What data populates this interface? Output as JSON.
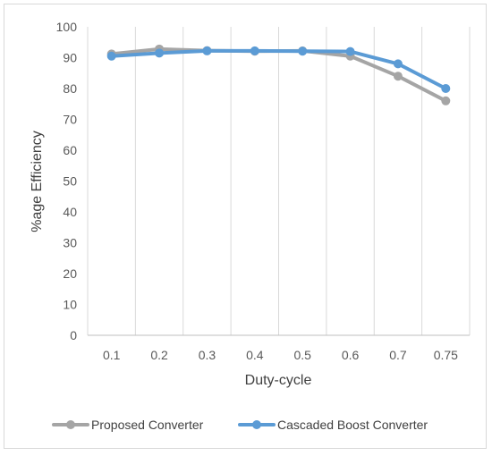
{
  "chart_data": {
    "type": "line",
    "categories": [
      "0.1",
      "0.2",
      "0.3",
      "0.4",
      "0.5",
      "0.6",
      "0.7",
      "0.75"
    ],
    "series": [
      {
        "name": "Proposed Converter",
        "color": "#a5a5a5",
        "values": [
          91.2,
          92.8,
          92.3,
          92.1,
          92.2,
          90.5,
          84.0,
          76.0
        ]
      },
      {
        "name": "Cascaded Boost Converter",
        "color": "#5b9bd5",
        "values": [
          90.5,
          91.5,
          92.2,
          92.2,
          92.1,
          92.0,
          88.0,
          80.0
        ]
      }
    ],
    "title": "",
    "xlabel": "Duty-cycle",
    "ylabel": "%age Efficiency",
    "ylim": [
      0,
      100
    ],
    "yticks": [
      "0",
      "10",
      "20",
      "30",
      "40",
      "50",
      "60",
      "70",
      "80",
      "90",
      "100"
    ],
    "grid": "vertical",
    "legend_position": "bottom"
  }
}
